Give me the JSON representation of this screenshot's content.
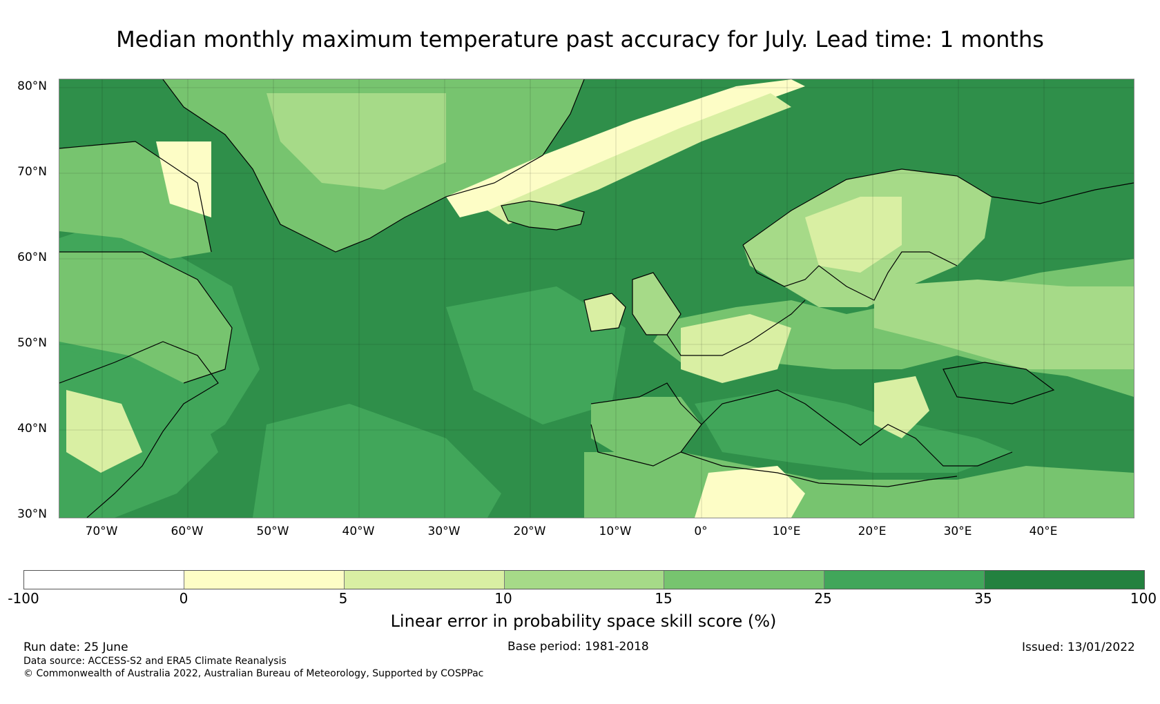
{
  "title": "Median monthly maximum temperature past accuracy for July. Lead time: 1 months",
  "map": {
    "lat_labels": [
      "80°N",
      "70°N",
      "60°N",
      "50°N",
      "40°N",
      "30°N"
    ],
    "lon_labels": [
      "70°W",
      "60°W",
      "50°W",
      "40°W",
      "30°W",
      "20°W",
      "10°W",
      "0°",
      "10°E",
      "20°E",
      "30°E",
      "40°E"
    ],
    "ocean_color": "#2f8f4a"
  },
  "colorbar": {
    "ticks": [
      "-100",
      "0",
      "5",
      "10",
      "15",
      "25",
      "35",
      "100"
    ],
    "colors": [
      "#ffffff",
      "#fdfdc6",
      "#d9efa3",
      "#a6da88",
      "#77c46f",
      "#41a65a",
      "#23813f"
    ],
    "label": "Linear error in probability space skill score (%)"
  },
  "footer": {
    "run_date": "Run date: 25 June",
    "base_period": "Base period: 1981-2018",
    "issued": "Issued: 13/01/2022",
    "data_source": "Data source: ACCESS-S2 and ERA5 Climate Reanalysis",
    "copyright": "© Commonwealth of Australia 2022, Australian Bureau of Meteorology, Supported by COSPPac"
  }
}
